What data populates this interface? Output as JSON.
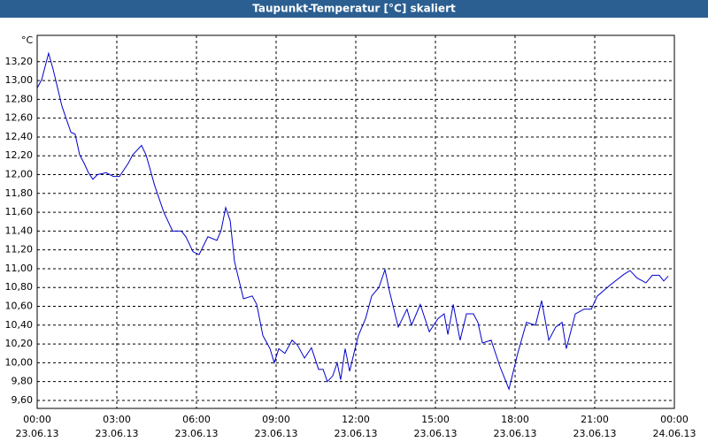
{
  "chart_data": {
    "type": "line",
    "title": "Taupunkt-Temperatur [°C] skaliert",
    "y_unit": "°C",
    "x": [
      0,
      0.17,
      0.43,
      0.6,
      0.77,
      0.93,
      1.1,
      1.27,
      1.43,
      1.6,
      1.77,
      1.93,
      2.1,
      2.27,
      2.6,
      2.87,
      3.1,
      3.43,
      3.6,
      3.93,
      4.1,
      4.43,
      4.77,
      5.1,
      5.43,
      5.6,
      5.87,
      6.1,
      6.43,
      6.77,
      6.93,
      7.1,
      7.27,
      7.43,
      7.77,
      8.1,
      8.27,
      8.5,
      8.77,
      8.93,
      9.1,
      9.33,
      9.6,
      9.8,
      10.07,
      10.33,
      10.6,
      10.77,
      10.93,
      11.13,
      11.3,
      11.43,
      11.6,
      11.77,
      11.93,
      12.1,
      12.37,
      12.6,
      12.87,
      13.1,
      13.27,
      13.6,
      13.93,
      14.1,
      14.43,
      14.77,
      15.1,
      15.33,
      15.47,
      15.67,
      15.93,
      16.17,
      16.43,
      16.6,
      16.77,
      17.1,
      17.43,
      17.77,
      18.1,
      18.43,
      18.77,
      19.0,
      19.27,
      19.53,
      19.77,
      19.93,
      20.27,
      20.6,
      20.87,
      21.1,
      21.6,
      22.1,
      22.33,
      22.6,
      22.93,
      23.17,
      23.43,
      23.6,
      23.77
    ],
    "values": [
      12.92,
      13.01,
      13.29,
      13.12,
      12.92,
      12.73,
      12.59,
      12.45,
      12.43,
      12.21,
      12.12,
      12.02,
      11.95,
      12.0,
      12.02,
      11.98,
      11.98,
      12.12,
      12.21,
      12.31,
      12.21,
      11.88,
      11.6,
      11.4,
      11.4,
      11.34,
      11.18,
      11.15,
      11.34,
      11.3,
      11.41,
      11.65,
      11.51,
      11.08,
      10.68,
      10.71,
      10.62,
      10.29,
      10.15,
      10.0,
      10.15,
      10.1,
      10.24,
      10.19,
      10.05,
      10.16,
      9.93,
      9.93,
      9.8,
      9.86,
      10.0,
      9.82,
      10.15,
      9.91,
      10.1,
      10.29,
      10.47,
      10.71,
      10.8,
      10.99,
      10.76,
      10.38,
      10.57,
      10.4,
      10.62,
      10.33,
      10.47,
      10.52,
      10.3,
      10.62,
      10.24,
      10.52,
      10.52,
      10.43,
      10.21,
      10.24,
      9.96,
      9.72,
      10.1,
      10.43,
      10.4,
      10.66,
      10.24,
      10.38,
      10.43,
      10.15,
      10.52,
      10.57,
      10.57,
      10.71,
      10.83,
      10.94,
      10.98,
      10.9,
      10.85,
      10.93,
      10.93,
      10.87,
      10.92
    ],
    "color": "#0000cc",
    "grid": true,
    "xlim": [
      0,
      24
    ],
    "ylim": [
      9.515,
      13.48
    ],
    "xticks": [
      {
        "value": 0,
        "label": "00:00"
      },
      {
        "value": 3,
        "label": "03:00"
      },
      {
        "value": 6,
        "label": "06:00"
      },
      {
        "value": 9,
        "label": "09:00"
      },
      {
        "value": 12,
        "label": "12:00"
      },
      {
        "value": 15,
        "label": "15:00"
      },
      {
        "value": 18,
        "label": "18:00"
      },
      {
        "value": 21,
        "label": "21:00"
      },
      {
        "value": 24,
        "label": "00:00"
      }
    ],
    "xtick_dates": [
      "23.06.13",
      "23.06.13",
      "23.06.13",
      "23.06.13",
      "23.06.13",
      "23.06.13",
      "23.06.13",
      "23.06.13",
      "24.06.13"
    ],
    "yticks": [
      {
        "value": 9.6,
        "label": "9,60"
      },
      {
        "value": 9.8,
        "label": "9,80"
      },
      {
        "value": 10.0,
        "label": "10,00"
      },
      {
        "value": 10.2,
        "label": "10,20"
      },
      {
        "value": 10.4,
        "label": "10,40"
      },
      {
        "value": 10.6,
        "label": "10,60"
      },
      {
        "value": 10.8,
        "label": "10,80"
      },
      {
        "value": 11.0,
        "label": "11,00"
      },
      {
        "value": 11.2,
        "label": "11,20"
      },
      {
        "value": 11.4,
        "label": "11,40"
      },
      {
        "value": 11.6,
        "label": "11,60"
      },
      {
        "value": 11.8,
        "label": "11,80"
      },
      {
        "value": 12.0,
        "label": "12,00"
      },
      {
        "value": 12.2,
        "label": "12,20"
      },
      {
        "value": 12.4,
        "label": "12,40"
      },
      {
        "value": 12.6,
        "label": "12,60"
      },
      {
        "value": 12.8,
        "label": "12,80"
      },
      {
        "value": 13.0,
        "label": "13,00"
      },
      {
        "value": 13.2,
        "label": "13,20"
      }
    ]
  }
}
